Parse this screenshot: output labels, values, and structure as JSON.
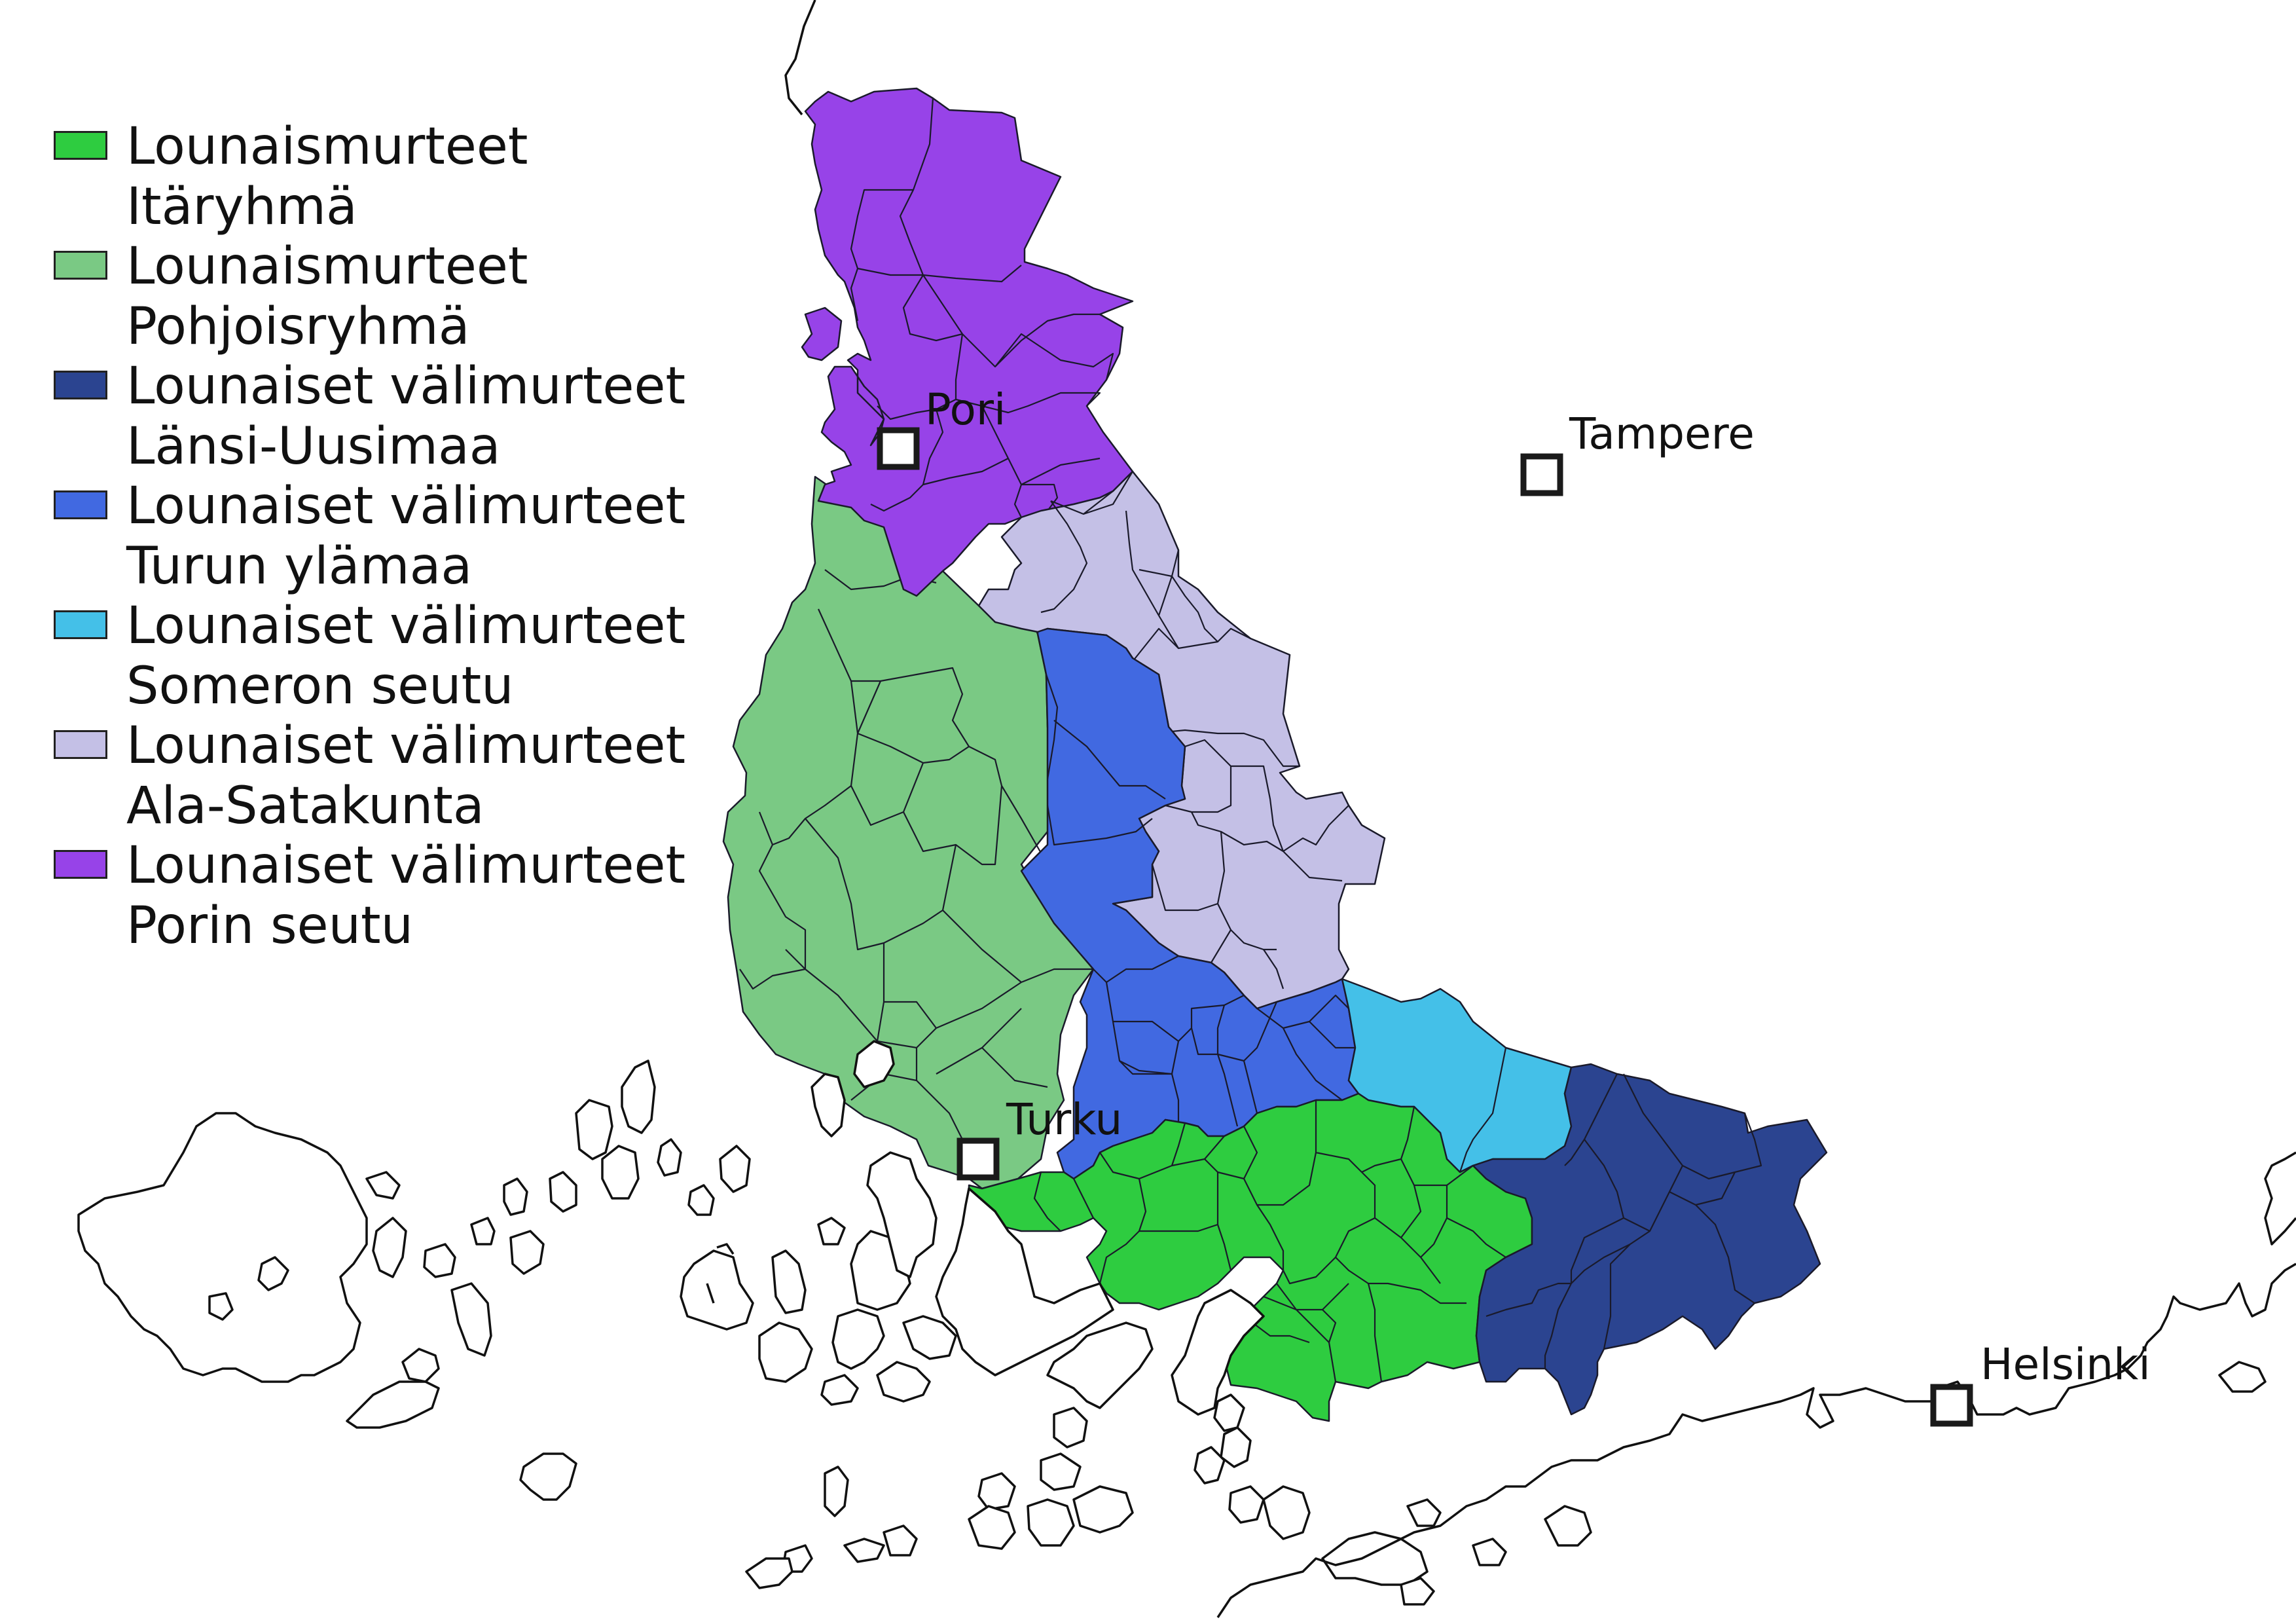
{
  "legend": [
    {
      "line1": "Lounaismurteet",
      "line2": "Itäryhmä",
      "color": "#2ecc40"
    },
    {
      "line1": "Lounaismurteet",
      "line2": "Pohjoisryhmä",
      "color": "#7ac984"
    },
    {
      "line1": "Lounaiset välimurteet",
      "line2": "Länsi-Uusimaa",
      "color": "#2b4490"
    },
    {
      "line1": "Lounaiset välimurteet",
      "line2": "Turun ylämaa",
      "color": "#4169e1"
    },
    {
      "line1": "Lounaiset välimurteet",
      "line2": "Someron seutu",
      "color": "#44c0e8"
    },
    {
      "line1": "Lounaiset välimurteet",
      "line2": "Ala-Satakunta",
      "color": "#c4c0e6"
    },
    {
      "line1": "Lounaiset välimurteet",
      "line2": "Porin seutu",
      "color": "#9743e8"
    }
  ],
  "cities": {
    "pori": "Pori",
    "tampere": "Tampere",
    "turku": "Turku",
    "helsinki": "Helsinki"
  }
}
